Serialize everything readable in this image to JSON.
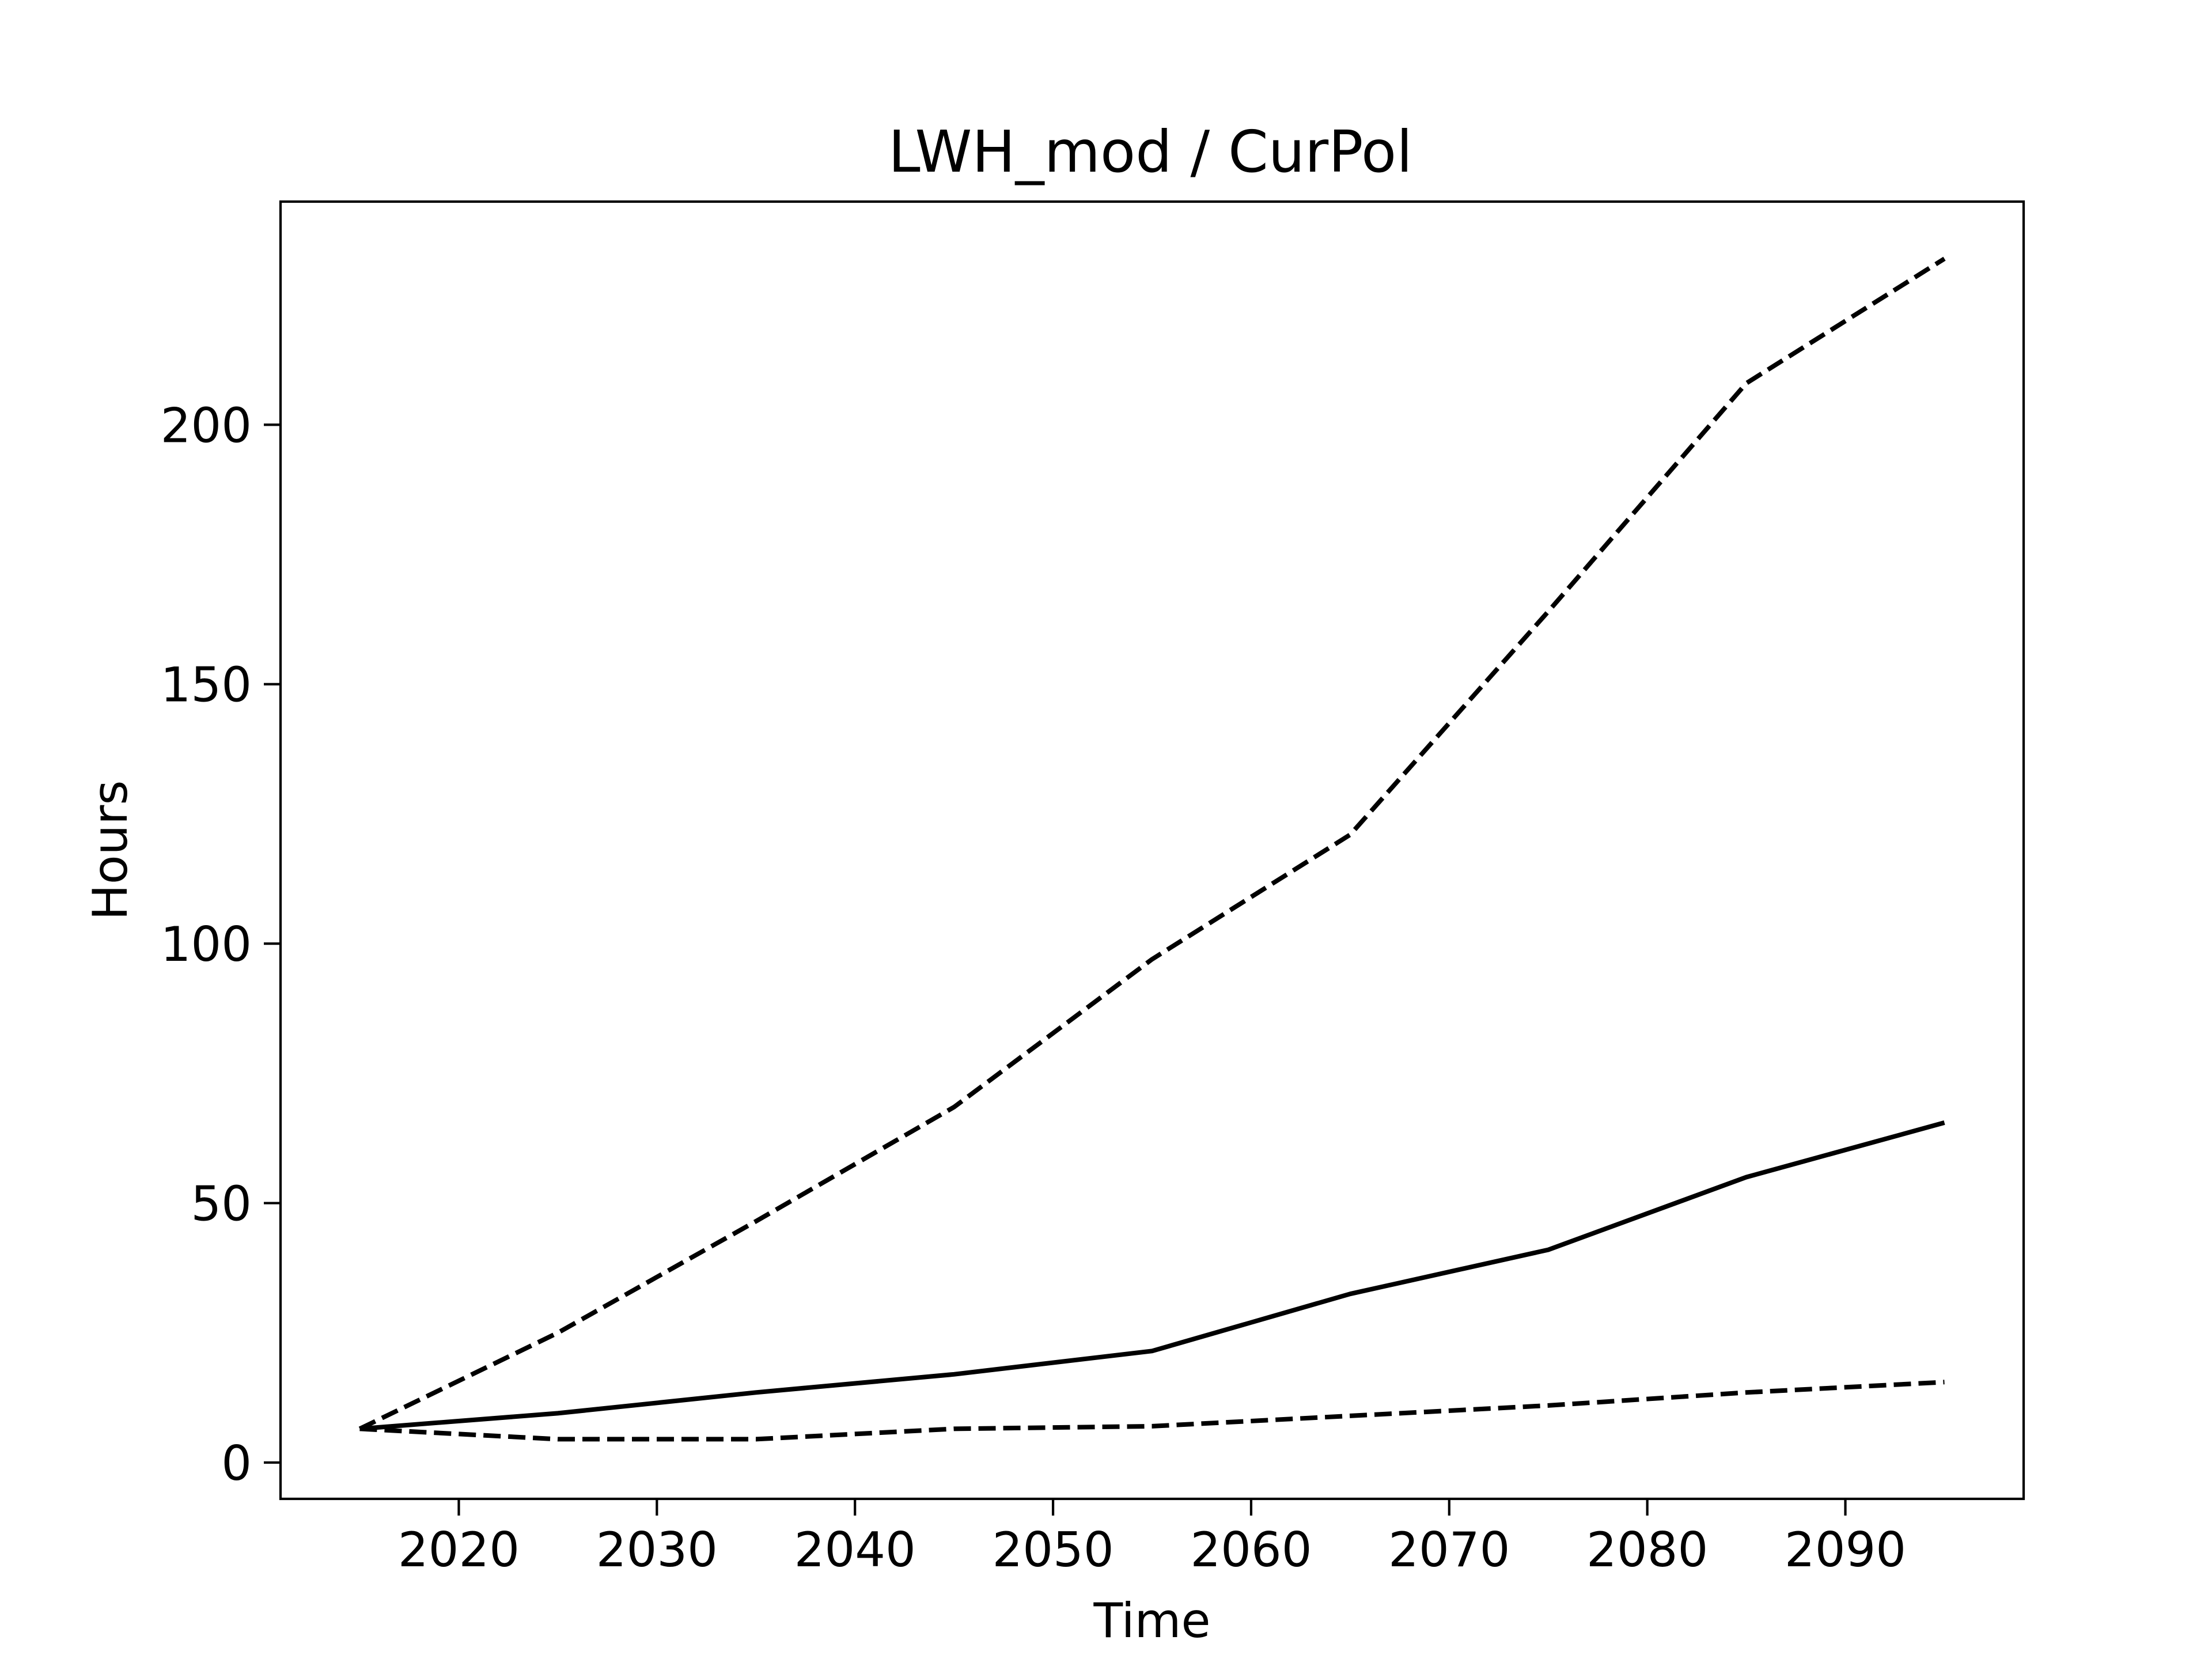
{
  "chart_data": {
    "type": "line",
    "title": "LWH_mod / CurPol",
    "xlabel": "Time",
    "ylabel": "Hours",
    "xlim": [
      2011,
      2099
    ],
    "ylim": [
      -7,
      243
    ],
    "xticks": [
      2020,
      2030,
      2040,
      2050,
      2060,
      2070,
      2080,
      2090
    ],
    "yticks": [
      0,
      50,
      100,
      150,
      200
    ],
    "grid": false,
    "legend": "none",
    "x": [
      2015,
      2025,
      2035,
      2045,
      2055,
      2065,
      2075,
      2085,
      2095
    ],
    "series": [
      {
        "style": "solid",
        "color": "#000000",
        "values": [
          6.5,
          9.5,
          13.5,
          17,
          21.5,
          32.5,
          41,
          55,
          65.5
        ]
      },
      {
        "style": "dashed",
        "color": "#000000",
        "values": [
          6.5,
          25,
          46.5,
          68.5,
          97,
          121,
          164,
          208,
          232
        ]
      },
      {
        "style": "dashed",
        "color": "#000000",
        "values": [
          6.5,
          4.5,
          4.5,
          6.5,
          7,
          9,
          11,
          13.5,
          15.5
        ]
      }
    ]
  }
}
